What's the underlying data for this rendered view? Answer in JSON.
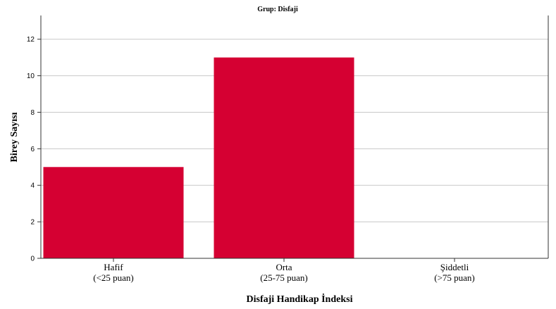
{
  "chart_data": {
    "type": "bar",
    "title": "Grup: Disfaji",
    "xlabel": "Disfaji Handikap İndeksi",
    "ylabel": "Birey Sayısı",
    "categories": [
      {
        "line1": "Hafif",
        "line2": "(<25 puan)"
      },
      {
        "line1": "Orta",
        "line2": "(25-75 puan)"
      },
      {
        "line1": "Şiddetli",
        "line2": "(>75 puan)"
      }
    ],
    "values": [
      5,
      11,
      0
    ],
    "yticks": [
      "0",
      "2",
      "4",
      "6",
      "8",
      "10",
      "12"
    ],
    "ylim": [
      0,
      13.3
    ],
    "grid": true,
    "bar_color": "#d50032"
  }
}
